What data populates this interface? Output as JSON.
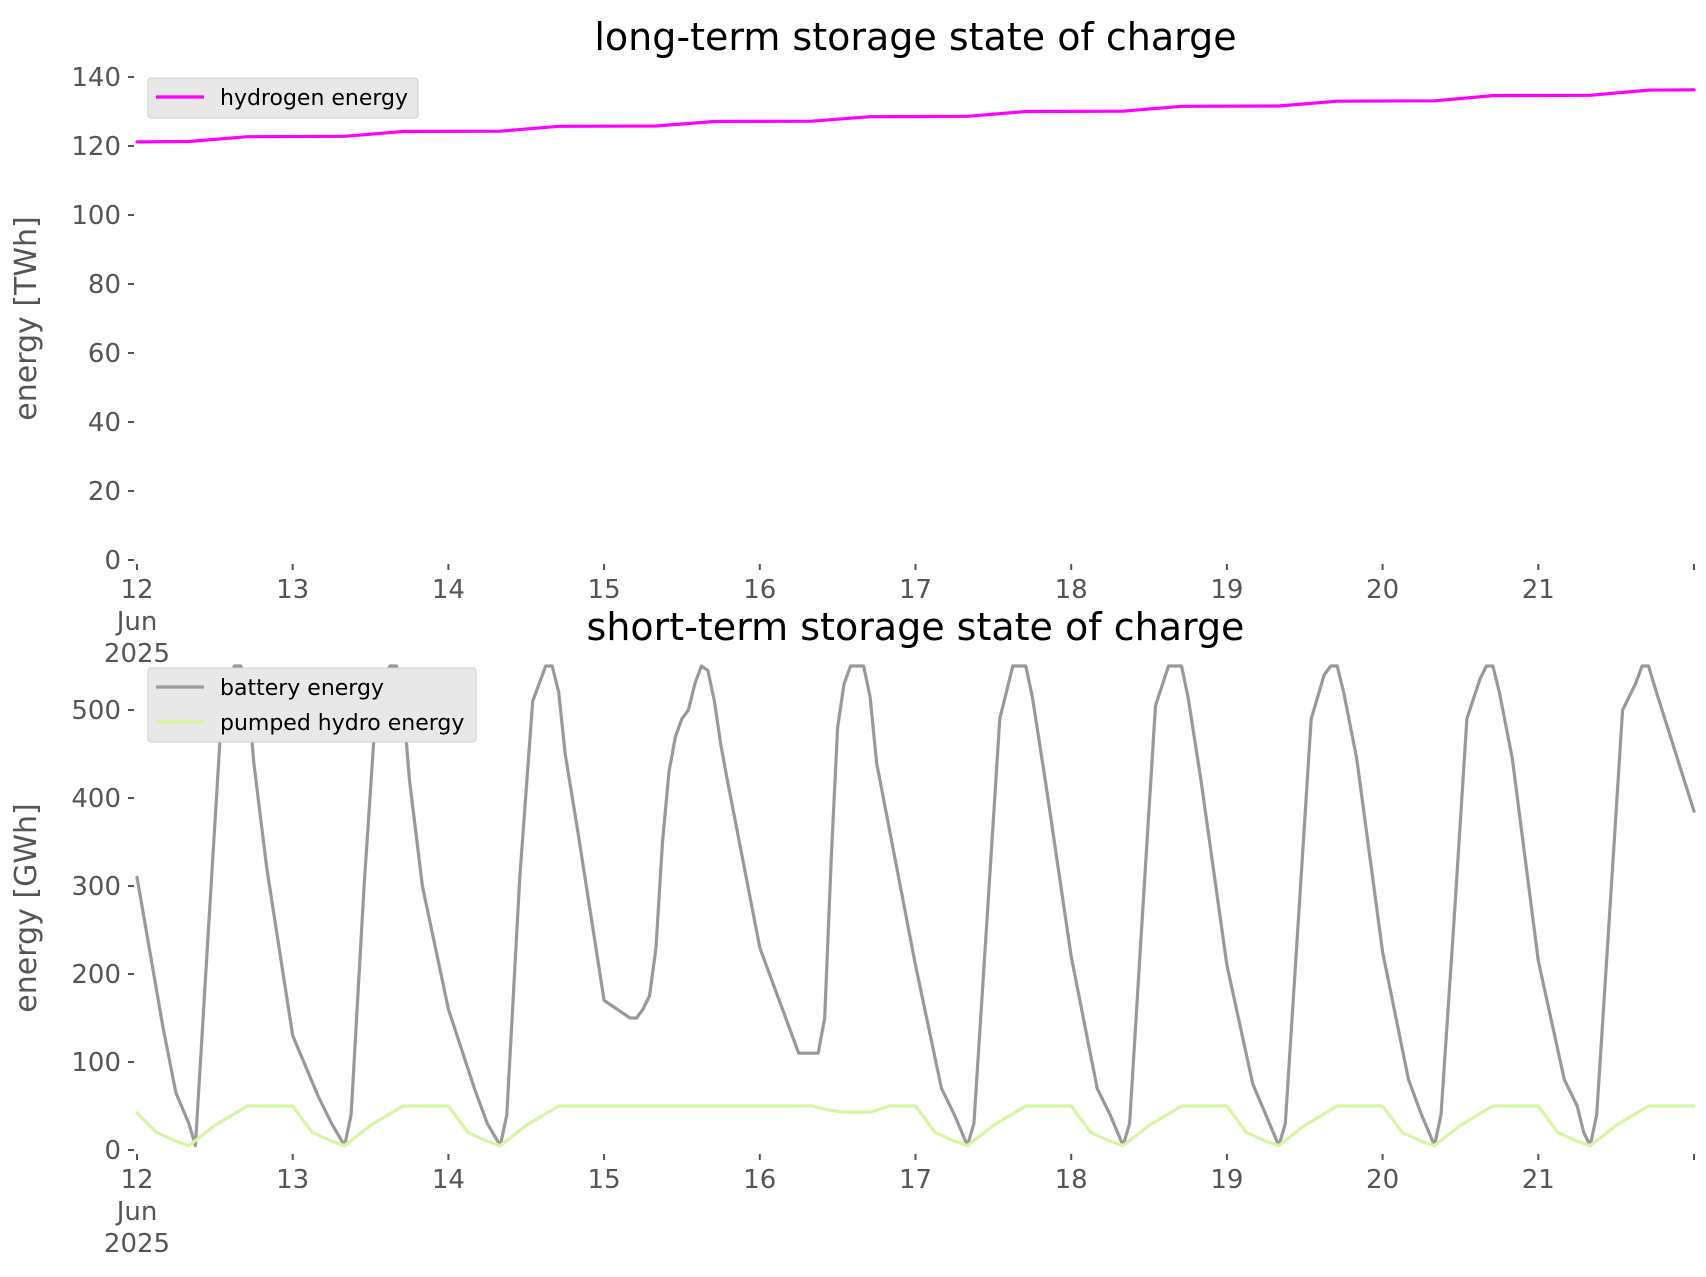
{
  "chart_data": [
    {
      "type": "line",
      "title": "long-term storage state of charge",
      "xlabel": "",
      "ylabel": "energy [TWh]",
      "x_range_days": [
        "2025-06-12",
        "2025-06-22"
      ],
      "x_tick_labels": [
        "12\nJun\n2025",
        "13",
        "14",
        "15",
        "16",
        "17",
        "18",
        "19",
        "20",
        "21"
      ],
      "ylim": [
        0,
        140
      ],
      "y_ticks": [
        0,
        20,
        40,
        60,
        80,
        100,
        120,
        140
      ],
      "grid": false,
      "legend_placement": "top-left",
      "series": [
        {
          "name": "hydrogen energy",
          "color": "#ff00ff",
          "x": [
            "2025-06-12 00:00",
            "2025-06-12 08:00",
            "2025-06-12 17:00",
            "2025-06-13 08:00",
            "2025-06-13 17:00",
            "2025-06-14 08:00",
            "2025-06-14 17:00",
            "2025-06-15 08:00",
            "2025-06-15 17:00",
            "2025-06-16 08:00",
            "2025-06-16 17:00",
            "2025-06-17 08:00",
            "2025-06-17 17:00",
            "2025-06-18 08:00",
            "2025-06-18 17:00",
            "2025-06-19 08:00",
            "2025-06-19 17:00",
            "2025-06-20 08:00",
            "2025-06-20 17:00",
            "2025-06-21 08:00",
            "2025-06-21 17:00",
            "2025-06-22 00:00"
          ],
          "y": [
            121.2,
            121.3,
            122.7,
            122.8,
            124.2,
            124.3,
            125.7,
            125.8,
            127.1,
            127.2,
            128.5,
            128.6,
            130.0,
            130.1,
            131.5,
            131.6,
            133.0,
            133.1,
            134.6,
            134.7,
            136.2,
            136.3
          ]
        }
      ]
    },
    {
      "type": "line",
      "title": "short-term storage state of charge",
      "xlabel": "",
      "ylabel": "energy [GWh]",
      "x_range_days": [
        "2025-06-12",
        "2025-06-22"
      ],
      "x_tick_labels": [
        "12\nJun\n2025",
        "13",
        "14",
        "15",
        "16",
        "17",
        "18",
        "19",
        "20",
        "21"
      ],
      "ylim": [
        0,
        550
      ],
      "y_ticks": [
        0,
        100,
        200,
        300,
        400,
        500
      ],
      "grid": false,
      "legend_placement": "top-left",
      "series": [
        {
          "name": "battery energy",
          "color": "#999999",
          "x": [
            "2025-06-12 00:00",
            "2025-06-12 04:00",
            "2025-06-12 06:00",
            "2025-06-12 08:00",
            "2025-06-12 09:00",
            "2025-06-12 11:00",
            "2025-06-12 13:00",
            "2025-06-12 15:00",
            "2025-06-12 16:00",
            "2025-06-12 17:00",
            "2025-06-12 18:00",
            "2025-06-12 20:00",
            "2025-06-13 00:00",
            "2025-06-13 04:00",
            "2025-06-13 06:00",
            "2025-06-13 08:00",
            "2025-06-13 09:00",
            "2025-06-13 11:00",
            "2025-06-13 13:00",
            "2025-06-13 15:00",
            "2025-06-13 16:00",
            "2025-06-13 17:00",
            "2025-06-13 18:00",
            "2025-06-13 20:00",
            "2025-06-14 00:00",
            "2025-06-14 04:00",
            "2025-06-14 06:00",
            "2025-06-14 08:00",
            "2025-06-14 09:00",
            "2025-06-14 11:00",
            "2025-06-14 13:00",
            "2025-06-14 15:00",
            "2025-06-14 16:00",
            "2025-06-14 17:00",
            "2025-06-14 18:00",
            "2025-06-14 20:00",
            "2025-06-15 00:00",
            "2025-06-15 04:00",
            "2025-06-15 05:00",
            "2025-06-15 06:00",
            "2025-06-15 07:00",
            "2025-06-15 08:00",
            "2025-06-15 09:00",
            "2025-06-15 10:00",
            "2025-06-15 11:00",
            "2025-06-15 12:00",
            "2025-06-15 13:00",
            "2025-06-15 14:00",
            "2025-06-15 15:00",
            "2025-06-15 16:00",
            "2025-06-15 17:00",
            "2025-06-15 18:00",
            "2025-06-15 19:00",
            "2025-06-16 00:00",
            "2025-06-16 05:00",
            "2025-06-16 06:00",
            "2025-06-16 07:00",
            "2025-06-16 09:00",
            "2025-06-16 10:00",
            "2025-06-16 11:00",
            "2025-06-16 12:00",
            "2025-06-16 13:00",
            "2025-06-16 14:00",
            "2025-06-16 15:00",
            "2025-06-16 16:00",
            "2025-06-16 17:00",
            "2025-06-16 18:00",
            "2025-06-17 00:00",
            "2025-06-17 04:00",
            "2025-06-17 06:00",
            "2025-06-17 08:00",
            "2025-06-17 09:00",
            "2025-06-17 11:00",
            "2025-06-17 13:00",
            "2025-06-17 15:00",
            "2025-06-17 16:00",
            "2025-06-17 17:00",
            "2025-06-17 18:00",
            "2025-06-17 20:00",
            "2025-06-18 00:00",
            "2025-06-18 04:00",
            "2025-06-18 06:00",
            "2025-06-18 08:00",
            "2025-06-18 09:00",
            "2025-06-18 11:00",
            "2025-06-18 13:00",
            "2025-06-18 15:00",
            "2025-06-18 16:00",
            "2025-06-18 17:00",
            "2025-06-18 18:00",
            "2025-06-18 20:00",
            "2025-06-19 00:00",
            "2025-06-19 04:00",
            "2025-06-19 06:00",
            "2025-06-19 08:00",
            "2025-06-19 09:00",
            "2025-06-19 11:00",
            "2025-06-19 13:00",
            "2025-06-19 15:00",
            "2025-06-19 16:00",
            "2025-06-19 17:00",
            "2025-06-19 18:00",
            "2025-06-19 20:00",
            "2025-06-20 00:00",
            "2025-06-20 04:00",
            "2025-06-20 06:00",
            "2025-06-20 08:00",
            "2025-06-20 09:00",
            "2025-06-20 11:00",
            "2025-06-20 13:00",
            "2025-06-20 15:00",
            "2025-06-20 16:00",
            "2025-06-20 17:00",
            "2025-06-20 18:00",
            "2025-06-20 20:00",
            "2025-06-21 00:00",
            "2025-06-21 04:00",
            "2025-06-21 06:00",
            "2025-06-21 07:00",
            "2025-06-21 08:00",
            "2025-06-21 09:00",
            "2025-06-21 11:00",
            "2025-06-21 13:00",
            "2025-06-21 15:00",
            "2025-06-21 16:00",
            "2025-06-21 17:00",
            "2025-06-21 18:00",
            "2025-06-22 00:00"
          ],
          "y": [
            310,
            140,
            65,
            30,
            5,
            250,
            490,
            550,
            550,
            530,
            440,
            320,
            130,
            60,
            30,
            5,
            40,
            300,
            520,
            550,
            550,
            510,
            420,
            300,
            160,
            70,
            30,
            5,
            40,
            310,
            510,
            550,
            550,
            520,
            450,
            360,
            170,
            150,
            150,
            160,
            175,
            230,
            350,
            430,
            470,
            490,
            500,
            530,
            550,
            545,
            510,
            460,
            420,
            230,
            130,
            110,
            110,
            110,
            150,
            330,
            480,
            530,
            550,
            550,
            550,
            515,
            440,
            210,
            70,
            40,
            5,
            30,
            260,
            490,
            550,
            550,
            550,
            515,
            420,
            220,
            70,
            40,
            5,
            30,
            270,
            505,
            550,
            550,
            550,
            515,
            420,
            210,
            75,
            40,
            5,
            30,
            260,
            490,
            540,
            550,
            550,
            520,
            445,
            225,
            80,
            40,
            5,
            40,
            260,
            490,
            535,
            550,
            550,
            520,
            445,
            215,
            80,
            50,
            20,
            5,
            40,
            270,
            500,
            530,
            550,
            550,
            525,
            385
          ]
        },
        {
          "name": "pumped hydro energy",
          "color": "#d8f5a2",
          "x": [
            "2025-06-12 00:00",
            "2025-06-12 03:00",
            "2025-06-12 06:00",
            "2025-06-12 08:00",
            "2025-06-12 12:00",
            "2025-06-12 17:00",
            "2025-06-12 20:00",
            "2025-06-12 24:00",
            "2025-06-13 03:00",
            "2025-06-13 06:00",
            "2025-06-13 08:00",
            "2025-06-13 12:00",
            "2025-06-13 17:00",
            "2025-06-13 20:00",
            "2025-06-13 24:00",
            "2025-06-14 03:00",
            "2025-06-14 06:00",
            "2025-06-14 08:00",
            "2025-06-14 12:00",
            "2025-06-14 17:00",
            "2025-06-15 17:00",
            "2025-06-15 22:00",
            "2025-06-16 03:00",
            "2025-06-16 08:00",
            "2025-06-16 11:00",
            "2025-06-16 13:00",
            "2025-06-16 17:00",
            "2025-06-16 20:00",
            "2025-06-16 24:00",
            "2025-06-17 03:00",
            "2025-06-17 06:00",
            "2025-06-17 08:00",
            "2025-06-17 12:00",
            "2025-06-17 17:00",
            "2025-06-17 20:00",
            "2025-06-17 24:00",
            "2025-06-18 03:00",
            "2025-06-18 06:00",
            "2025-06-18 08:00",
            "2025-06-18 12:00",
            "2025-06-18 17:00",
            "2025-06-18 20:00",
            "2025-06-18 24:00",
            "2025-06-19 03:00",
            "2025-06-19 06:00",
            "2025-06-19 08:00",
            "2025-06-19 12:00",
            "2025-06-19 17:00",
            "2025-06-19 20:00",
            "2025-06-19 24:00",
            "2025-06-20 03:00",
            "2025-06-20 06:00",
            "2025-06-20 08:00",
            "2025-06-20 12:00",
            "2025-06-20 17:00",
            "2025-06-20 20:00",
            "2025-06-20 24:00",
            "2025-06-21 03:00",
            "2025-06-21 06:00",
            "2025-06-21 08:00",
            "2025-06-21 12:00",
            "2025-06-21 17:00",
            "2025-06-22 00:00"
          ],
          "y": [
            42,
            20,
            10,
            5,
            28,
            50,
            50,
            50,
            20,
            10,
            5,
            28,
            50,
            50,
            50,
            20,
            10,
            5,
            28,
            50,
            50,
            50,
            50,
            50,
            45,
            43,
            43,
            50,
            50,
            20,
            10,
            5,
            28,
            50,
            50,
            50,
            20,
            10,
            5,
            28,
            50,
            50,
            50,
            20,
            10,
            5,
            28,
            50,
            50,
            50,
            20,
            10,
            5,
            28,
            50,
            50,
            50,
            20,
            10,
            5,
            28,
            50,
            50
          ]
        }
      ]
    }
  ]
}
